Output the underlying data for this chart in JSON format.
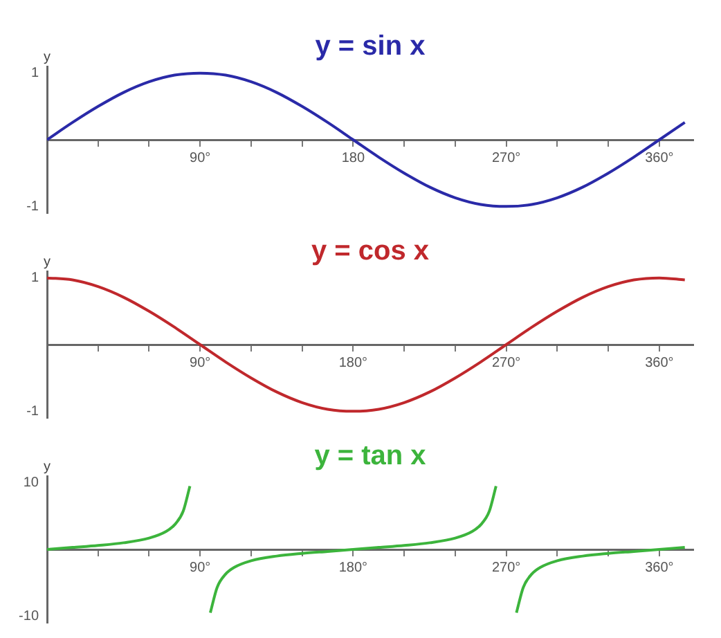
{
  "chart_data": [
    {
      "type": "line",
      "title": "y = sin x",
      "ylabel": "y",
      "x": [
        0,
        15,
        30,
        45,
        60,
        75,
        90,
        105,
        120,
        135,
        150,
        165,
        180,
        195,
        210,
        225,
        240,
        255,
        270,
        285,
        300,
        315,
        330,
        345,
        360,
        375
      ],
      "series": [
        {
          "color": "#2a2aa8",
          "values": [
            0,
            0.26,
            0.5,
            0.71,
            0.87,
            0.97,
            1,
            0.97,
            0.87,
            0.71,
            0.5,
            0.26,
            0,
            -0.26,
            -0.5,
            -0.71,
            -0.87,
            -0.97,
            -1,
            -0.97,
            -0.87,
            -0.71,
            -0.5,
            -0.26,
            0,
            0.26
          ]
        }
      ],
      "xlim": [
        0,
        380
      ],
      "xticks": [
        {
          "value": 30,
          "label": null
        },
        {
          "value": 60,
          "label": null
        },
        {
          "value": 90,
          "label": "90°"
        },
        {
          "value": 120,
          "label": null
        },
        {
          "value": 150,
          "label": null
        },
        {
          "value": 180,
          "label": "180"
        },
        {
          "value": 210,
          "label": null
        },
        {
          "value": 240,
          "label": null
        },
        {
          "value": 270,
          "label": "270°"
        },
        {
          "value": 300,
          "label": null
        },
        {
          "value": 330,
          "label": null
        },
        {
          "value": 360,
          "label": "360°"
        }
      ],
      "ylim": [
        -1.1,
        1.1
      ],
      "yticks": [
        -1,
        1
      ],
      "grid": false,
      "legend": false,
      "marker": "none",
      "line_style": "solid"
    },
    {
      "type": "line",
      "title": "y = cos x",
      "ylabel": "y",
      "x": [
        0,
        15,
        30,
        45,
        60,
        75,
        90,
        105,
        120,
        135,
        150,
        165,
        180,
        195,
        210,
        225,
        240,
        255,
        270,
        285,
        300,
        315,
        330,
        345,
        360,
        375
      ],
      "series": [
        {
          "color": "#c0282c",
          "values": [
            1,
            0.97,
            0.87,
            0.71,
            0.5,
            0.26,
            0,
            -0.26,
            -0.5,
            -0.71,
            -0.87,
            -0.97,
            -1,
            -0.97,
            -0.87,
            -0.71,
            -0.5,
            -0.26,
            0,
            0.26,
            0.5,
            0.71,
            0.87,
            0.97,
            1,
            0.97
          ]
        }
      ],
      "xlim": [
        0,
        380
      ],
      "xticks": [
        {
          "value": 30,
          "label": null
        },
        {
          "value": 60,
          "label": null
        },
        {
          "value": 90,
          "label": "90°"
        },
        {
          "value": 120,
          "label": null
        },
        {
          "value": 150,
          "label": null
        },
        {
          "value": 180,
          "label": "180°"
        },
        {
          "value": 210,
          "label": null
        },
        {
          "value": 240,
          "label": null
        },
        {
          "value": 270,
          "label": "270°"
        },
        {
          "value": 300,
          "label": null
        },
        {
          "value": 330,
          "label": null
        },
        {
          "value": 360,
          "label": "360°"
        }
      ],
      "ylim": [
        -1.1,
        1.1
      ],
      "yticks": [
        -1,
        1
      ],
      "grid": false,
      "legend": false,
      "marker": "none",
      "line_style": "solid"
    },
    {
      "type": "line",
      "title": "y = tan x",
      "ylabel": "y",
      "x": [
        0,
        15,
        30,
        45,
        60,
        70,
        75,
        80,
        84,
        90,
        96,
        100,
        105,
        110,
        120,
        135,
        150,
        165,
        180,
        195,
        210,
        225,
        240,
        250,
        255,
        260,
        264,
        270,
        276,
        280,
        285,
        290,
        300,
        315,
        330,
        345,
        360,
        375
      ],
      "series": [
        {
          "color": "#3cb43c",
          "values": [
            0,
            0.3,
            0.6,
            1,
            1.7,
            2.7,
            3.7,
            5.7,
            9.5,
            null,
            -9.5,
            -5.7,
            -3.7,
            -2.7,
            -1.7,
            -1,
            -0.6,
            -0.3,
            0,
            0.3,
            0.6,
            1,
            1.7,
            2.7,
            3.7,
            5.7,
            9.5,
            null,
            -9.5,
            -5.7,
            -3.7,
            -2.7,
            -1.7,
            -1,
            -0.6,
            -0.3,
            0,
            0.3
          ]
        }
      ],
      "xlim": [
        0,
        380
      ],
      "xticks": [
        {
          "value": 30,
          "label": null
        },
        {
          "value": 60,
          "label": null
        },
        {
          "value": 90,
          "label": "90°"
        },
        {
          "value": 120,
          "label": null
        },
        {
          "value": 150,
          "label": null
        },
        {
          "value": 180,
          "label": "180°"
        },
        {
          "value": 210,
          "label": null
        },
        {
          "value": 240,
          "label": null
        },
        {
          "value": 270,
          "label": "270°"
        },
        {
          "value": 300,
          "label": null
        },
        {
          "value": 330,
          "label": null
        },
        {
          "value": 360,
          "label": "360°"
        }
      ],
      "ylim": [
        -11,
        11
      ],
      "yticks": [
        -10,
        10
      ],
      "grid": false,
      "legend": false,
      "marker": "none",
      "line_style": "solid"
    }
  ]
}
